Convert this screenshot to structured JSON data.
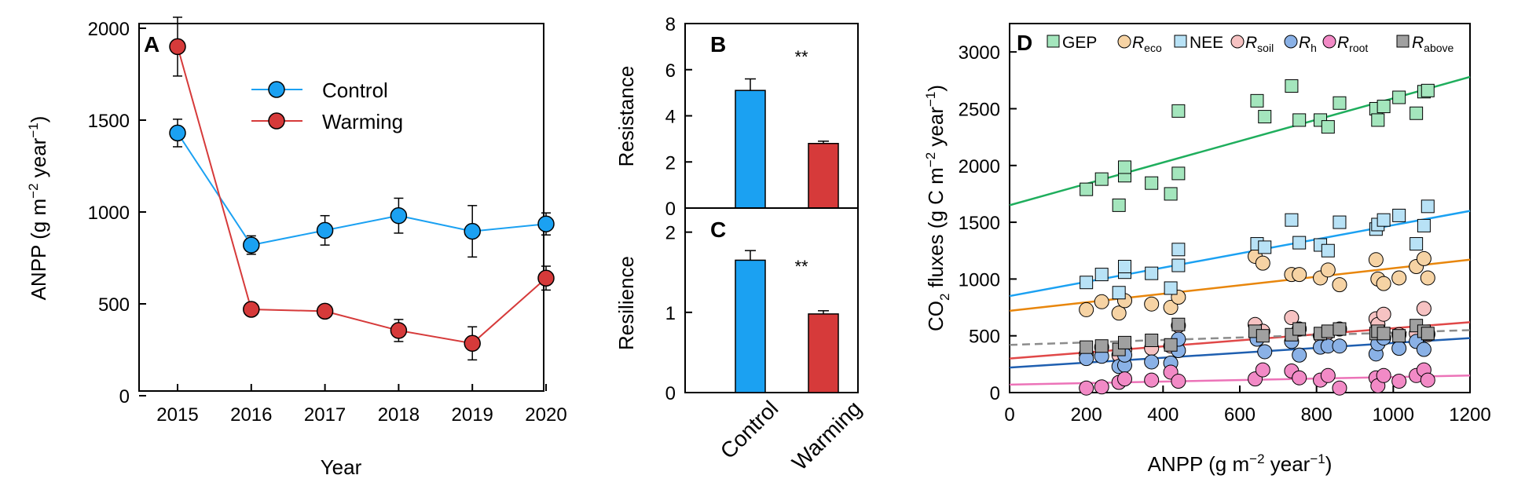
{
  "chart_data": [
    {
      "panel": "A",
      "type": "line",
      "xlabel": "Year",
      "ylabel": "ANPP (g m−2 year−1)",
      "categories": [
        "2015",
        "2016",
        "2017",
        "2018",
        "2019",
        "2020"
      ],
      "ylim": [
        0,
        2000
      ],
      "yticks": [
        0,
        500,
        1000,
        1500,
        2000
      ],
      "legend": "upper-middle",
      "series": [
        {
          "name": "Control",
          "color": "#1ba1f2",
          "values": [
            1430,
            820,
            900,
            980,
            895,
            935
          ],
          "errors": [
            75,
            50,
            80,
            95,
            140,
            60
          ]
        },
        {
          "name": "Warming",
          "color": "#d63a3a",
          "values": [
            1900,
            470,
            460,
            355,
            285,
            640
          ],
          "errors": [
            160,
            20,
            25,
            60,
            90,
            65
          ]
        }
      ]
    },
    {
      "panel": "B",
      "type": "bar",
      "ylabel": "Resistance",
      "categories": [
        "Control",
        "Warming"
      ],
      "values": [
        5.1,
        2.8
      ],
      "errors": [
        0.5,
        0.1
      ],
      "colors": [
        "#1ba1f2",
        "#d63a3a"
      ],
      "ylim": [
        0,
        8
      ],
      "yticks": [
        0,
        2,
        4,
        6,
        8
      ],
      "annotation": "**"
    },
    {
      "panel": "C",
      "type": "bar",
      "ylabel": "Resilience",
      "categories": [
        "Control",
        "Warming"
      ],
      "values": [
        1.65,
        0.98
      ],
      "errors": [
        0.12,
        0.04
      ],
      "colors": [
        "#1ba1f2",
        "#d63a3a"
      ],
      "ylim": [
        0,
        2.3
      ],
      "yticks": [
        0,
        1,
        2
      ],
      "annotation": "**"
    },
    {
      "panel": "D",
      "type": "scatter",
      "xlabel": "ANPP (g m−2 year−1)",
      "ylabel": "CO2 fluxes (g C m−2 year−1)",
      "xlim": [
        0,
        1200
      ],
      "ylim": [
        0,
        3250
      ],
      "xticks": [
        0,
        200,
        400,
        600,
        800,
        1000,
        1200
      ],
      "yticks": [
        0,
        500,
        1000,
        1500,
        2000,
        2500,
        3000
      ],
      "legend": "top",
      "series": [
        {
          "name": "GEP",
          "marker": "square",
          "color": "#a4e6bd",
          "line_color": "#1fae5d",
          "line_dash": false,
          "fit": [
            1650,
            2780
          ],
          "points": [
            [
              200,
              1790
            ],
            [
              240,
              1880
            ],
            [
              285,
              1650
            ],
            [
              300,
              1910
            ],
            [
              300,
              1985
            ],
            [
              370,
              1845
            ],
            [
              420,
              1750
            ],
            [
              440,
              1930
            ],
            [
              440,
              2480
            ],
            [
              645,
              2570
            ],
            [
              665,
              2430
            ],
            [
              735,
              2700
            ],
            [
              755,
              2400
            ],
            [
              810,
              2400
            ],
            [
              830,
              2340
            ],
            [
              860,
              2550
            ],
            [
              955,
              2500
            ],
            [
              960,
              2400
            ],
            [
              975,
              2520
            ],
            [
              1015,
              2600
            ],
            [
              1060,
              2460
            ],
            [
              1080,
              2650
            ],
            [
              1090,
              2660
            ]
          ]
        },
        {
          "name": "Reco",
          "marker": "circle",
          "color": "#f6d3a4",
          "line_color": "#e8860c",
          "line_dash": false,
          "fit": [
            720,
            1170
          ],
          "points": [
            [
              200,
              730
            ],
            [
              240,
              800
            ],
            [
              285,
              700
            ],
            [
              300,
              810
            ],
            [
              370,
              780
            ],
            [
              420,
              750
            ],
            [
              440,
              840
            ],
            [
              640,
              1200
            ],
            [
              660,
              1140
            ],
            [
              735,
              1040
            ],
            [
              755,
              1040
            ],
            [
              810,
              1010
            ],
            [
              830,
              1080
            ],
            [
              860,
              950
            ],
            [
              955,
              1170
            ],
            [
              960,
              1000
            ],
            [
              975,
              960
            ],
            [
              1015,
              1010
            ],
            [
              1060,
              1110
            ],
            [
              1080,
              1180
            ],
            [
              1090,
              1010
            ]
          ]
        },
        {
          "name": "NEE",
          "marker": "square",
          "color": "#b8e2f6",
          "line_color": "#1ba1f2",
          "line_dash": false,
          "fit": [
            850,
            1600
          ],
          "points": [
            [
              200,
              970
            ],
            [
              240,
              1040
            ],
            [
              285,
              880
            ],
            [
              300,
              1060
            ],
            [
              300,
              1110
            ],
            [
              370,
              1050
            ],
            [
              420,
              920
            ],
            [
              440,
              1120
            ],
            [
              440,
              1260
            ],
            [
              645,
              1310
            ],
            [
              665,
              1280
            ],
            [
              735,
              1520
            ],
            [
              755,
              1320
            ],
            [
              810,
              1300
            ],
            [
              830,
              1250
            ],
            [
              860,
              1500
            ],
            [
              955,
              1440
            ],
            [
              960,
              1480
            ],
            [
              975,
              1520
            ],
            [
              1015,
              1560
            ],
            [
              1060,
              1310
            ],
            [
              1080,
              1470
            ],
            [
              1090,
              1640
            ]
          ]
        },
        {
          "name": "Rsoil",
          "marker": "circle",
          "color": "#f6c2c2",
          "line_color": "#e04848",
          "line_dash": false,
          "fit": [
            300,
            620
          ],
          "points": [
            [
              200,
              340
            ],
            [
              240,
              400
            ],
            [
              285,
              330
            ],
            [
              300,
              380
            ],
            [
              370,
              390
            ],
            [
              420,
              410
            ],
            [
              440,
              590
            ],
            [
              640,
              600
            ],
            [
              660,
              540
            ],
            [
              735,
              660
            ],
            [
              755,
              560
            ],
            [
              810,
              500
            ],
            [
              830,
              530
            ],
            [
              860,
              560
            ],
            [
              955,
              650
            ],
            [
              960,
              600
            ],
            [
              975,
              690
            ],
            [
              1015,
              510
            ],
            [
              1060,
              520
            ],
            [
              1080,
              740
            ],
            [
              1090,
              510
            ]
          ]
        },
        {
          "name": "Rh",
          "marker": "circle",
          "color": "#8ab1e6",
          "line_color": "#1f5fb0",
          "line_dash": false,
          "fit": [
            220,
            480
          ],
          "points": [
            [
              200,
              300
            ],
            [
              240,
              320
            ],
            [
              285,
              230
            ],
            [
              300,
              240
            ],
            [
              300,
              330
            ],
            [
              370,
              270
            ],
            [
              420,
              260
            ],
            [
              440,
              370
            ],
            [
              440,
              470
            ],
            [
              645,
              470
            ],
            [
              665,
              360
            ],
            [
              735,
              450
            ],
            [
              755,
              330
            ],
            [
              810,
              400
            ],
            [
              830,
              410
            ],
            [
              860,
              410
            ],
            [
              955,
              340
            ],
            [
              960,
              430
            ],
            [
              975,
              480
            ],
            [
              1015,
              390
            ],
            [
              1060,
              450
            ],
            [
              1080,
              380
            ],
            [
              1090,
              520
            ]
          ]
        },
        {
          "name": "Rroot",
          "marker": "circle",
          "color": "#f28ac6",
          "line_color": "#ec73b8",
          "line_dash": false,
          "fit": [
            70,
            150
          ],
          "points": [
            [
              200,
              40
            ],
            [
              240,
              50
            ],
            [
              285,
              90
            ],
            [
              300,
              120
            ],
            [
              370,
              110
            ],
            [
              420,
              180
            ],
            [
              440,
              100
            ],
            [
              640,
              120
            ],
            [
              660,
              200
            ],
            [
              735,
              190
            ],
            [
              755,
              130
            ],
            [
              810,
              110
            ],
            [
              830,
              150
            ],
            [
              860,
              40
            ],
            [
              955,
              130
            ],
            [
              960,
              60
            ],
            [
              975,
              150
            ],
            [
              1015,
              100
            ],
            [
              1060,
              150
            ],
            [
              1080,
              200
            ],
            [
              1090,
              110
            ]
          ]
        },
        {
          "name": "Rabove",
          "marker": "square",
          "color": "#a0a0a0",
          "line_color": "#8c8c8c",
          "line_dash": true,
          "fit": [
            420,
            550
          ],
          "points": [
            [
              200,
              400
            ],
            [
              240,
              410
            ],
            [
              285,
              380
            ],
            [
              300,
              440
            ],
            [
              370,
              460
            ],
            [
              420,
              420
            ],
            [
              440,
              600
            ],
            [
              640,
              540
            ],
            [
              660,
              500
            ],
            [
              735,
              510
            ],
            [
              755,
              560
            ],
            [
              810,
              520
            ],
            [
              830,
              540
            ],
            [
              860,
              560
            ],
            [
              955,
              520
            ],
            [
              960,
              540
            ],
            [
              975,
              520
            ],
            [
              1015,
              500
            ],
            [
              1060,
              590
            ],
            [
              1080,
              540
            ],
            [
              1090,
              520
            ]
          ]
        }
      ]
    }
  ],
  "panel_labels": {
    "a": "A",
    "b": "B",
    "c": "C",
    "d": "D"
  },
  "legend_a": {
    "control": "Control",
    "warming": "Warming"
  },
  "legend_d": {
    "gep": "GEP",
    "reco_main": "R",
    "reco_sub": "eco",
    "nee": "NEE",
    "rsoil_main": "R",
    "rsoil_sub": "soil",
    "rh_main": "R",
    "rh_sub": "h",
    "rroot_main": "R",
    "rroot_sub": "root",
    "rabove_main": "R",
    "rabove_sub": "above"
  },
  "axis_a": {
    "ylabel_main": "ANPP (g m",
    "ylabel_sup1": "−2",
    "ylabel_mid": " year",
    "ylabel_sup2": "−1",
    "ylabel_end": ")",
    "xlabel": "Year"
  },
  "axis_b": {
    "ylabel": "Resistance",
    "sig": "**"
  },
  "axis_c": {
    "ylabel": "Resilience",
    "sig": "**",
    "x_control": "Control",
    "x_warming": "Warming"
  },
  "axis_d": {
    "ylabel_pre": "CO",
    "ylabel_sub": "2",
    "ylabel_mid": " fluxes (g C m",
    "ylabel_sup1": "−2",
    "ylabel_mid2": " year",
    "ylabel_sup2": "−1",
    "ylabel_end": ")",
    "xlabel_main": "ANPP (g m",
    "xlabel_sup1": "−2",
    "xlabel_mid": " year",
    "xlabel_sup2": "−1",
    "xlabel_end": ")"
  }
}
